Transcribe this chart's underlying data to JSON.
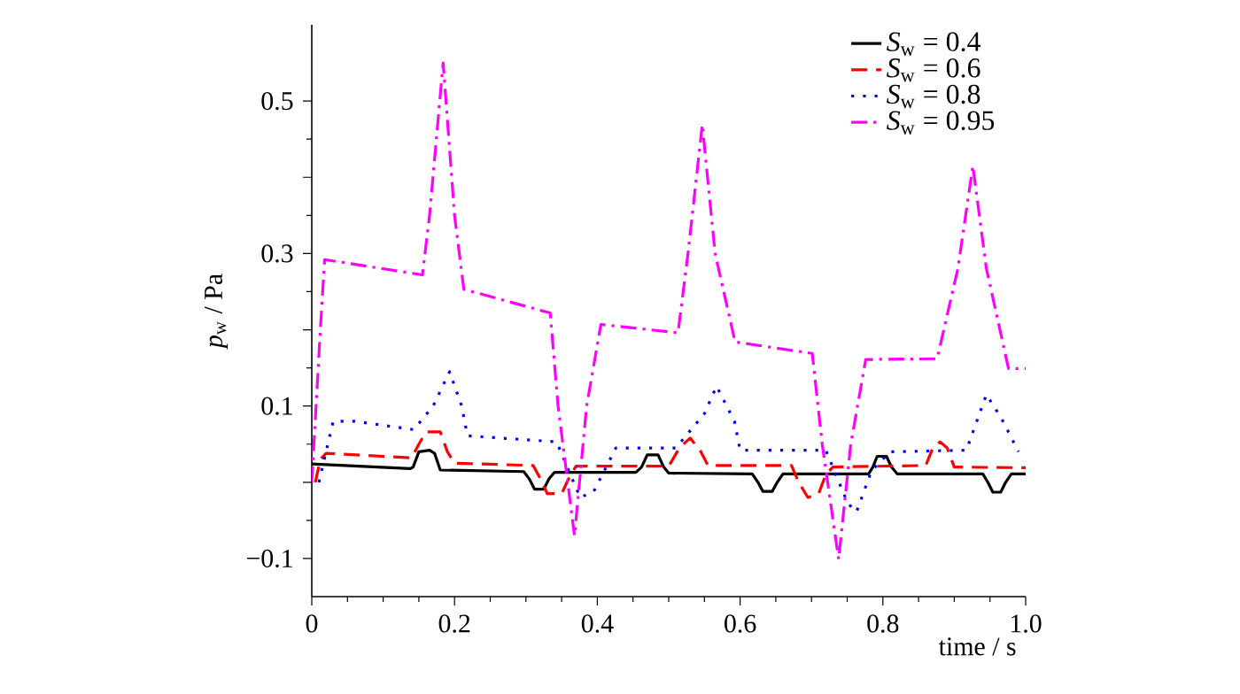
{
  "chart_data": {
    "type": "line",
    "xlabel": "time / s",
    "ylabel": "*p*$_{w}$ / Pa",
    "xlim": [
      0,
      1.0
    ],
    "ylim": [
      -0.15,
      0.6
    ],
    "xticks": [
      {
        "value": 0,
        "label": "0"
      },
      {
        "value": 0.2,
        "label": "0.2"
      },
      {
        "value": 0.4,
        "label": "0.4"
      },
      {
        "value": 0.6,
        "label": "0.6"
      },
      {
        "value": 0.8,
        "label": "0.8"
      },
      {
        "value": 1.0,
        "label": "1.0"
      }
    ],
    "yticks": [
      {
        "value": -0.1,
        "label": "−0.1"
      },
      {
        "value": 0,
        "label": null
      },
      {
        "value": 0.1,
        "label": "0.1"
      },
      {
        "value": 0.2,
        "label": null
      },
      {
        "value": 0.3,
        "label": "0.3"
      },
      {
        "value": 0.4,
        "label": null
      },
      {
        "value": 0.5,
        "label": "0.5"
      }
    ],
    "grid": false,
    "legend": "top right",
    "marker": "none",
    "series": [
      {
        "name": "*S*$_{w}$ = 0.4",
        "color": "#000000",
        "line_style": "solid",
        "x": [
          0,
          0.138,
          0.142,
          0.15,
          0.165,
          0.172,
          0.18,
          0.297,
          0.305,
          0.312,
          0.325,
          0.332,
          0.34,
          0.454,
          0.462,
          0.47,
          0.485,
          0.493,
          0.5,
          0.617,
          0.625,
          0.632,
          0.645,
          0.652,
          0.66,
          0.78,
          0.786,
          0.792,
          0.805,
          0.812,
          0.82,
          0.94,
          0.947,
          0.954,
          0.965,
          0.972,
          0.98,
          1.0
        ],
        "values": [
          0.024,
          0.018,
          0.02,
          0.04,
          0.042,
          0.038,
          0.016,
          0.014,
          0.004,
          -0.009,
          -0.009,
          0.004,
          0.013,
          0.013,
          0.02,
          0.036,
          0.036,
          0.02,
          0.012,
          0.011,
          0.0,
          -0.012,
          -0.012,
          0.0,
          0.011,
          0.011,
          0.02,
          0.034,
          0.034,
          0.02,
          0.011,
          0.011,
          0.0,
          -0.013,
          -0.013,
          0.0,
          0.011,
          0.011
        ]
      },
      {
        "name": "*S*$_{w}$ = 0.6",
        "color": "#ff0000",
        "line_style": "dashed",
        "x": [
          0.005,
          0.012,
          0.02,
          0.14,
          0.15,
          0.16,
          0.18,
          0.19,
          0.2,
          0.31,
          0.32,
          0.33,
          0.35,
          0.36,
          0.37,
          0.5,
          0.515,
          0.53,
          0.545,
          0.555,
          0.672,
          0.682,
          0.695,
          0.71,
          0.72,
          0.73,
          0.86,
          0.87,
          0.88,
          0.89,
          0.9,
          1.0
        ],
        "values": [
          0.0,
          0.03,
          0.038,
          0.032,
          0.05,
          0.066,
          0.066,
          0.04,
          0.025,
          0.022,
          0.005,
          -0.015,
          -0.015,
          0.005,
          0.021,
          0.021,
          0.045,
          0.058,
          0.04,
          0.022,
          0.022,
          0.0,
          -0.02,
          -0.015,
          0.01,
          0.02,
          0.022,
          0.045,
          0.053,
          0.045,
          0.02,
          0.019
        ]
      },
      {
        "name": "*S*$_{w}$ = 0.8",
        "color": "#0000ff",
        "line_style": "dotted",
        "x": [
          0.01,
          0.03,
          0.06,
          0.143,
          0.17,
          0.193,
          0.21,
          0.218,
          0.343,
          0.36,
          0.376,
          0.395,
          0.426,
          0.51,
          0.55,
          0.567,
          0.592,
          0.6,
          0.72,
          0.751,
          0.763,
          0.784,
          0.81,
          0.917,
          0.933,
          0.945,
          0.966,
          0.99
        ],
        "values": [
          0.0,
          0.08,
          0.08,
          0.069,
          0.1,
          0.145,
          0.1,
          0.061,
          0.053,
          0.015,
          -0.02,
          -0.012,
          0.045,
          0.045,
          0.09,
          0.126,
          0.08,
          0.042,
          0.042,
          -0.028,
          -0.039,
          0.015,
          0.04,
          0.042,
          0.084,
          0.115,
          0.084,
          0.04
        ]
      },
      {
        "name": "*S*$_{w}$ = 0.95",
        "color": "#ff00ff",
        "line_style": "dashdot",
        "x": [
          0.0,
          0.012,
          0.018,
          0.155,
          0.165,
          0.184,
          0.2,
          0.213,
          0.334,
          0.345,
          0.368,
          0.385,
          0.405,
          0.513,
          0.527,
          0.547,
          0.565,
          0.593,
          0.701,
          0.715,
          0.738,
          0.755,
          0.776,
          0.876,
          0.905,
          0.926,
          0.945,
          0.976,
          1.0
        ],
        "values": [
          0.0,
          0.2,
          0.292,
          0.272,
          0.35,
          0.55,
          0.35,
          0.253,
          0.222,
          0.1,
          -0.07,
          0.1,
          0.207,
          0.196,
          0.3,
          0.469,
          0.3,
          0.184,
          0.169,
          0.05,
          -0.101,
          0.05,
          0.161,
          0.162,
          0.28,
          0.415,
          0.28,
          0.149,
          0.149
        ]
      }
    ]
  }
}
